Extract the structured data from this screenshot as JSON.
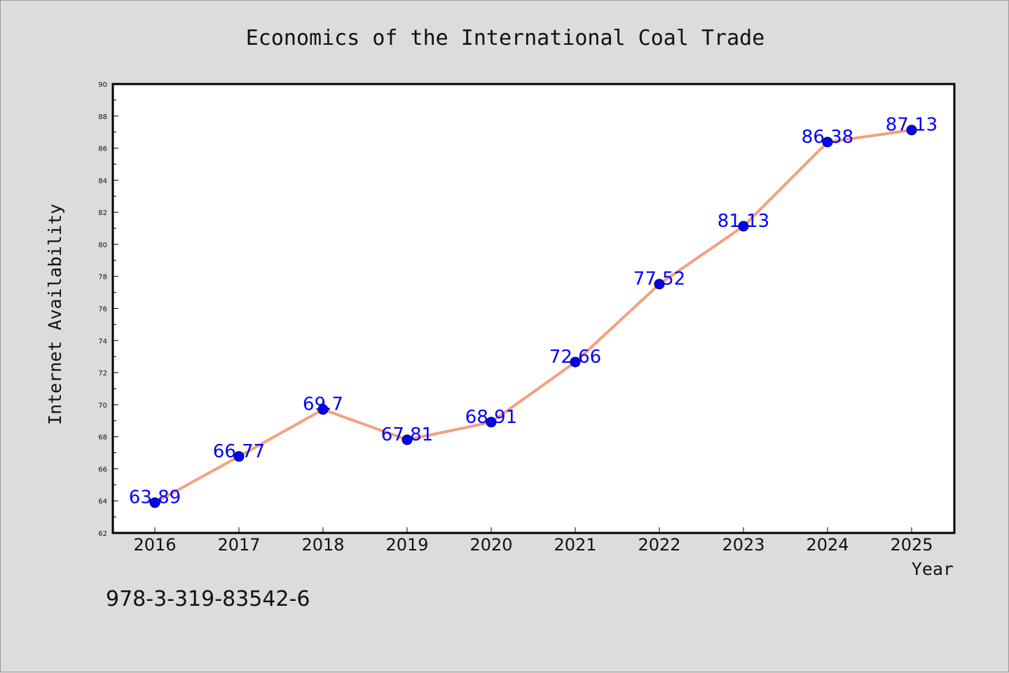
{
  "chart_data": {
    "type": "line",
    "title": "Economics of the International Coal Trade",
    "xlabel": "Year",
    "ylabel": "Internet Availability",
    "categories": [
      "2016",
      "2017",
      "2018",
      "2019",
      "2020",
      "2021",
      "2022",
      "2023",
      "2024",
      "2025"
    ],
    "series": [
      {
        "values": [
          63.89,
          66.77,
          69.7,
          67.81,
          68.91,
          72.66,
          77.52,
          81.13,
          86.38,
          87.13
        ],
        "labels": [
          "63.89",
          "66.77",
          "69.7",
          "67.81",
          "68.91",
          "72.66",
          "77.52",
          "81.13",
          "86.38",
          "87.13"
        ],
        "line_color": "#f4a07e",
        "marker_color": "#0000ff"
      }
    ],
    "ylim": [
      62,
      90
    ],
    "yticks": [
      "62",
      "64",
      "66",
      "68",
      "70",
      "72",
      "74",
      "76",
      "78",
      "80",
      "82",
      "84",
      "86",
      "88",
      "90"
    ],
    "grid": false
  },
  "footer": {
    "code": "978-3-319-83542-6"
  }
}
